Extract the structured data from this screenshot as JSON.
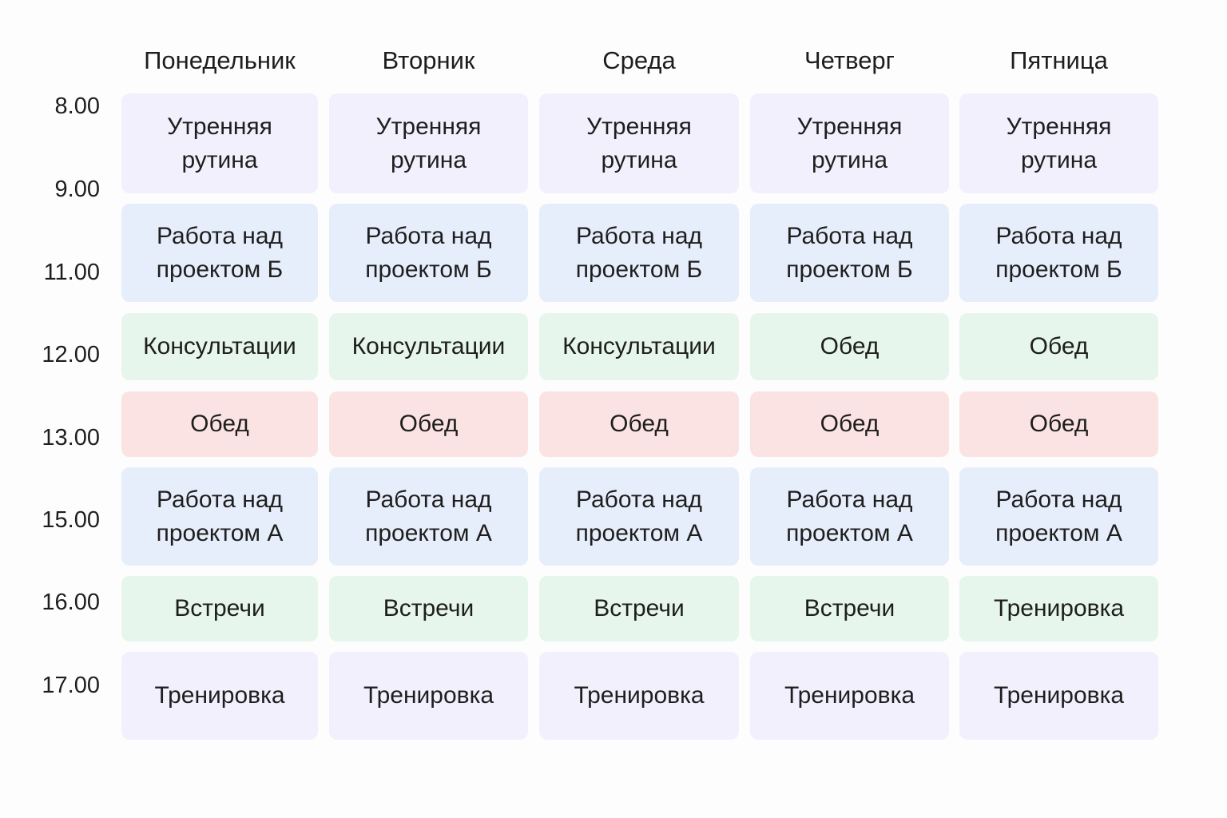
{
  "days": [
    "Понедельник",
    "Вторник",
    "Среда",
    "Четверг",
    "Пятница"
  ],
  "times": [
    "8.00",
    "9.00",
    "11.00",
    "12.00",
    "13.00",
    "15.00",
    "16.00",
    "17.00"
  ],
  "rows": [
    [
      {
        "lines": [
          "Утренняя",
          "рутина"
        ],
        "color": "#f3f0fd"
      },
      {
        "lines": [
          "Утренняя",
          "рутина"
        ],
        "color": "#f3f0fd"
      },
      {
        "lines": [
          "Утренняя",
          "рутина"
        ],
        "color": "#f3f0fd"
      },
      {
        "lines": [
          "Утренняя",
          "рутина"
        ],
        "color": "#f3f0fd"
      },
      {
        "lines": [
          "Утренняя",
          "рутина"
        ],
        "color": "#f3f0fd"
      }
    ],
    [
      {
        "lines": [
          "Работа над",
          "проектом Б"
        ],
        "color": "#e7eefb"
      },
      {
        "lines": [
          "Работа над",
          "проектом Б"
        ],
        "color": "#e7eefb"
      },
      {
        "lines": [
          "Работа над",
          "проектом Б"
        ],
        "color": "#e7eefb"
      },
      {
        "lines": [
          "Работа над",
          "проектом Б"
        ],
        "color": "#e7eefb"
      },
      {
        "lines": [
          "Работа над",
          "проектом Б"
        ],
        "color": "#e7eefb"
      }
    ],
    [
      {
        "lines": [
          "Консультации"
        ],
        "color": "#e6f6ec"
      },
      {
        "lines": [
          "Консультации"
        ],
        "color": "#e6f6ec"
      },
      {
        "lines": [
          "Консультации"
        ],
        "color": "#e6f6ec"
      },
      {
        "lines": [
          "Обед"
        ],
        "color": "#e6f6ec"
      },
      {
        "lines": [
          "Обед"
        ],
        "color": "#e6f6ec"
      }
    ],
    [
      {
        "lines": [
          "Обед"
        ],
        "color": "#fbe3e3"
      },
      {
        "lines": [
          "Обед"
        ],
        "color": "#fbe3e3"
      },
      {
        "lines": [
          "Обед"
        ],
        "color": "#fbe3e3"
      },
      {
        "lines": [
          "Обед"
        ],
        "color": "#fbe3e3"
      },
      {
        "lines": [
          "Обед"
        ],
        "color": "#fbe3e3"
      }
    ],
    [
      {
        "lines": [
          "Работа над",
          "проектом А"
        ],
        "color": "#e7eefb"
      },
      {
        "lines": [
          "Работа над",
          "проектом А"
        ],
        "color": "#e7eefb"
      },
      {
        "lines": [
          "Работа над",
          "проектом А"
        ],
        "color": "#e7eefb"
      },
      {
        "lines": [
          "Работа над",
          "проектом А"
        ],
        "color": "#e7eefb"
      },
      {
        "lines": [
          "Работа над",
          "проектом А"
        ],
        "color": "#e7eefb"
      }
    ],
    [
      {
        "lines": [
          "Встречи"
        ],
        "color": "#e6f6ec"
      },
      {
        "lines": [
          "Встречи"
        ],
        "color": "#e6f6ec"
      },
      {
        "lines": [
          "Встречи"
        ],
        "color": "#e6f6ec"
      },
      {
        "lines": [
          "Встречи"
        ],
        "color": "#e6f6ec"
      },
      {
        "lines": [
          "Тренировка"
        ],
        "color": "#e6f6ec"
      }
    ],
    [
      {
        "lines": [
          "Тренировка"
        ],
        "color": "#f3f0fd"
      },
      {
        "lines": [
          "Тренировка"
        ],
        "color": "#f3f0fd"
      },
      {
        "lines": [
          "Тренировка"
        ],
        "color": "#f3f0fd"
      },
      {
        "lines": [
          "Тренировка"
        ],
        "color": "#f3f0fd"
      },
      {
        "lines": [
          "Тренировка"
        ],
        "color": "#f3f0fd"
      }
    ]
  ]
}
